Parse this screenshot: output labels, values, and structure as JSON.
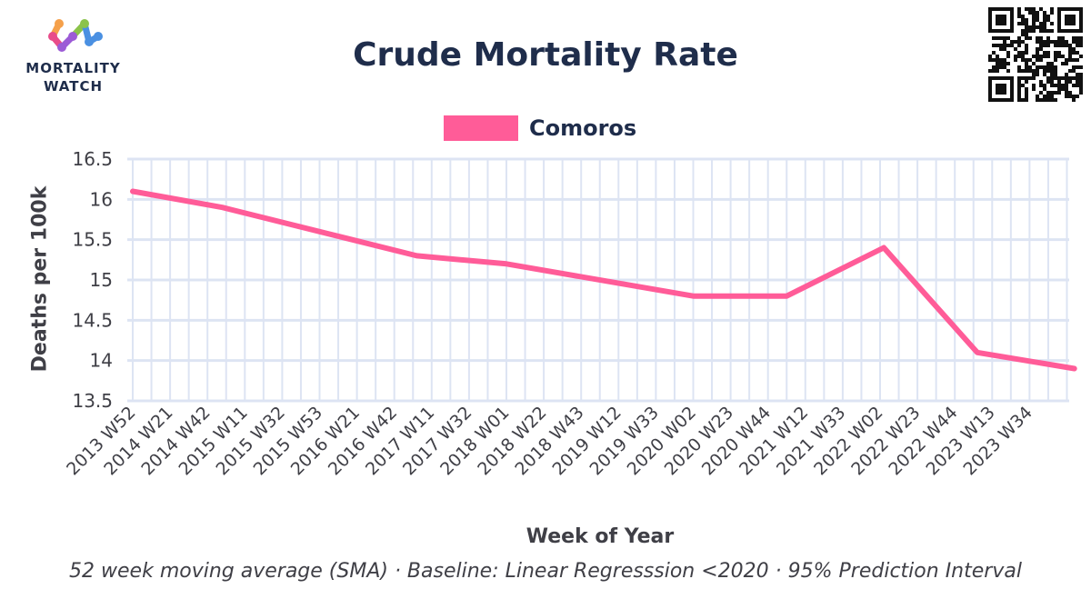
{
  "logo": {
    "line1": "MORTALITY",
    "line2": "WATCH"
  },
  "qr": {
    "icon": "qr-code-icon"
  },
  "chart_data": {
    "type": "line",
    "title": "Crude Mortality Rate",
    "xlabel": "Week of Year",
    "ylabel": "Deaths per 100k",
    "caption": "52 week moving average (SMA) · Baseline: Linear Regresssion <2020 · 95% Prediction Interval",
    "ylim": [
      13.5,
      16.5
    ],
    "yticks": [
      13.5,
      14,
      14.5,
      15,
      15.5,
      16,
      16.5
    ],
    "ytick_labels": [
      "13.5",
      "14",
      "14.5",
      "15",
      "15.5",
      "16",
      "16.5"
    ],
    "categories": [
      "2013 W52",
      "2014 W21",
      "2014 W42",
      "2015 W11",
      "2015 W32",
      "2015 W53",
      "2016 W21",
      "2016 W42",
      "2017 W11",
      "2017 W32",
      "2018 W01",
      "2018 W22",
      "2018 W43",
      "2019 W12",
      "2019 W33",
      "2020 W02",
      "2020 W23",
      "2020 W44",
      "2021 W12",
      "2021 W33",
      "2022 W02",
      "2022 W23",
      "2022 W44",
      "2023 W13",
      "2023 W34"
    ],
    "legend_position": "top-center",
    "series": [
      {
        "name": "Comoros",
        "color": "#ff5c98",
        "points": [
          {
            "x": 0,
            "y": 16.1
          },
          {
            "x": 2.4,
            "y": 15.9
          },
          {
            "x": 7.6,
            "y": 15.3
          },
          {
            "x": 10,
            "y": 15.2
          },
          {
            "x": 15,
            "y": 14.8
          },
          {
            "x": 17.5,
            "y": 14.8
          },
          {
            "x": 20.1,
            "y": 15.4
          },
          {
            "x": 22.6,
            "y": 14.1
          },
          {
            "x": 25.2,
            "y": 13.9
          }
        ]
      }
    ]
  }
}
